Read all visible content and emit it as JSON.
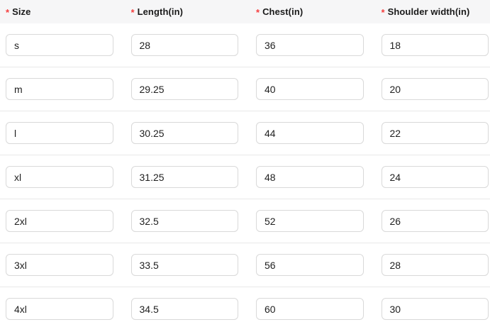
{
  "header": {
    "columns": [
      {
        "required_marker": "*",
        "label": "Size"
      },
      {
        "required_marker": "*",
        "label": "Length(in)"
      },
      {
        "required_marker": "*",
        "label": "Chest(in)"
      },
      {
        "required_marker": "*",
        "label": "Shoulder width(in)"
      }
    ]
  },
  "rows": [
    {
      "size": "s",
      "length": "28",
      "chest": "36",
      "shoulder": "18"
    },
    {
      "size": "m",
      "length": "29.25",
      "chest": "40",
      "shoulder": "20"
    },
    {
      "size": "l",
      "length": "30.25",
      "chest": "44",
      "shoulder": "22"
    },
    {
      "size": "xl",
      "length": "31.25",
      "chest": "48",
      "shoulder": "24"
    },
    {
      "size": "2xl",
      "length": "32.5",
      "chest": "52",
      "shoulder": "26"
    },
    {
      "size": "3xl",
      "length": "33.5",
      "chest": "56",
      "shoulder": "28"
    },
    {
      "size": "4xl",
      "length": "34.5",
      "chest": "60",
      "shoulder": "30"
    }
  ],
  "colors": {
    "required_red": "#f53f3f",
    "header_background": "#f6f6f7",
    "row_divider": "#e8e8e8",
    "input_border": "#d9d9d9",
    "text": "#1f1f1f"
  }
}
